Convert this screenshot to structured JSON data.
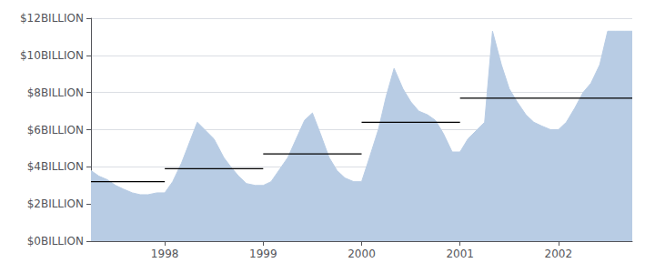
{
  "chart_data": {
    "type": "area",
    "x": [
      1997.25,
      1997.33,
      1997.42,
      1997.5,
      1997.58,
      1997.67,
      1997.75,
      1997.83,
      1997.92,
      1998.0,
      1998.08,
      1998.17,
      1998.33,
      1998.5,
      1998.6,
      1998.67,
      1998.75,
      1998.83,
      1998.92,
      1999.0,
      1999.08,
      1999.25,
      1999.42,
      1999.5,
      1999.58,
      1999.67,
      1999.75,
      1999.83,
      1999.92,
      2000.0,
      2000.08,
      2000.17,
      2000.25,
      2000.33,
      2000.42,
      2000.5,
      2000.58,
      2000.67,
      2000.75,
      2000.83,
      2000.92,
      2001.0,
      2001.08,
      2001.25,
      2001.33,
      2001.42,
      2001.5,
      2001.58,
      2001.67,
      2001.75,
      2001.83,
      2001.92,
      2002.0,
      2002.08,
      2002.17,
      2002.25,
      2002.33,
      2002.42,
      2002.5,
      2002.58,
      2002.67,
      2002.75
    ],
    "values": [
      3.8,
      3.5,
      3.3,
      3.0,
      2.8,
      2.6,
      2.5,
      2.5,
      2.6,
      2.6,
      3.2,
      4.2,
      6.4,
      5.5,
      4.5,
      4.0,
      3.5,
      3.1,
      3.0,
      3.0,
      3.2,
      4.5,
      6.5,
      6.9,
      5.8,
      4.5,
      3.8,
      3.4,
      3.2,
      3.2,
      4.5,
      6.0,
      7.8,
      9.3,
      8.2,
      7.5,
      7.0,
      6.8,
      6.5,
      5.8,
      4.8,
      4.8,
      5.5,
      6.4,
      11.3,
      9.5,
      8.2,
      7.5,
      6.8,
      6.4,
      6.2,
      6.0,
      6.0,
      6.4,
      7.2,
      8.0,
      8.5,
      9.5,
      11.3,
      11.3,
      11.3,
      11.3
    ],
    "color": "#b8cce4",
    "averages": {
      "color": "#000000",
      "values": [
        3.2,
        3.9,
        4.7,
        6.4,
        7.7
      ],
      "starts": [
        1997.25,
        1998.0,
        1999.0,
        2000.0,
        2001.0
      ],
      "ends": [
        1998.0,
        1999.0,
        2000.0,
        2001.0,
        2002.75
      ]
    },
    "xlim": [
      1997.25,
      2002.75
    ],
    "xticks": [
      1998,
      1999,
      2000,
      2001,
      2002
    ],
    "ylim": [
      0,
      12
    ],
    "yticks": [
      {
        "value": 0,
        "label": "$0BILLION"
      },
      {
        "value": 2,
        "label": "$2BILLION"
      },
      {
        "value": 4,
        "label": "$4BILLION"
      },
      {
        "value": 6,
        "label": "$6BILLION"
      },
      {
        "value": 8,
        "label": "$8BILLION"
      },
      {
        "value": 10,
        "label": "$10BILLION"
      },
      {
        "value": 12,
        "label": "$12BILLION"
      }
    ],
    "grid": true
  }
}
